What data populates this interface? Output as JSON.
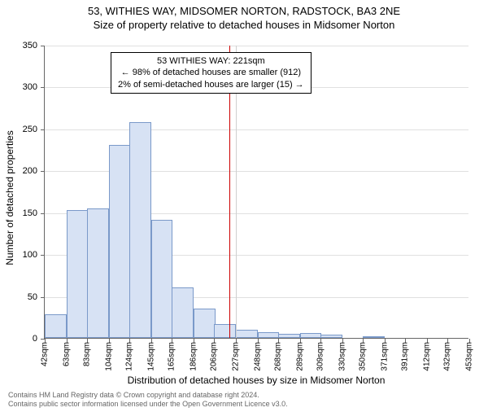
{
  "title": {
    "main": "53, WITHIES WAY, MIDSOMER NORTON, RADSTOCK, BA3 2NE",
    "sub": "Size of property relative to detached houses in Midsomer Norton",
    "fontsize": 13
  },
  "chart": {
    "type": "histogram",
    "ylabel": "Number of detached properties",
    "xlabel": "Distribution of detached houses by size in Midsomer Norton",
    "label_fontsize": 12,
    "tick_fontsize": 11,
    "ylim": [
      0,
      350
    ],
    "ytick_step": 50,
    "xticks": [
      42,
      63,
      83,
      104,
      124,
      145,
      165,
      186,
      206,
      227,
      248,
      268,
      289,
      309,
      330,
      350,
      371,
      391,
      412,
      432,
      453
    ],
    "xtick_suffix": "sqm",
    "x_range": [
      42,
      453
    ],
    "bar_color": "#d7e2f4",
    "bar_border_color": "#7a99c9",
    "background_color": "#ffffff",
    "grid_color": "#e0e0e0",
    "axis_color": "#666666",
    "bar_width": 1.0,
    "bars": [
      {
        "x": 42,
        "y": 28
      },
      {
        "x": 63,
        "y": 153
      },
      {
        "x": 83,
        "y": 155
      },
      {
        "x": 104,
        "y": 230
      },
      {
        "x": 124,
        "y": 258
      },
      {
        "x": 145,
        "y": 141
      },
      {
        "x": 165,
        "y": 60
      },
      {
        "x": 186,
        "y": 35
      },
      {
        "x": 206,
        "y": 17
      },
      {
        "x": 227,
        "y": 10
      },
      {
        "x": 248,
        "y": 7
      },
      {
        "x": 268,
        "y": 5
      },
      {
        "x": 289,
        "y": 6
      },
      {
        "x": 309,
        "y": 4
      },
      {
        "x": 330,
        "y": 0
      },
      {
        "x": 350,
        "y": 2
      },
      {
        "x": 371,
        "y": 0
      },
      {
        "x": 391,
        "y": 0
      },
      {
        "x": 412,
        "y": 0
      },
      {
        "x": 432,
        "y": 0
      }
    ],
    "reference_line": {
      "x": 221,
      "color": "#cc0000",
      "secondary_x": 227,
      "secondary_color": "#d0d0d0"
    },
    "annotation": {
      "line1": "53 WITHIES WAY: 221sqm",
      "line2": "← 98% of detached houses are smaller (912)",
      "line3": "2% of semi-detached houses are larger (15) →",
      "box_border": "#000000",
      "box_bg": "#ffffff",
      "fontsize": 11
    }
  },
  "footnote": {
    "line1": "Contains HM Land Registry data © Crown copyright and database right 2024.",
    "line2": "Contains public sector information licensed under the Open Government Licence v3.0.",
    "color": "#666666",
    "fontsize": 9
  }
}
